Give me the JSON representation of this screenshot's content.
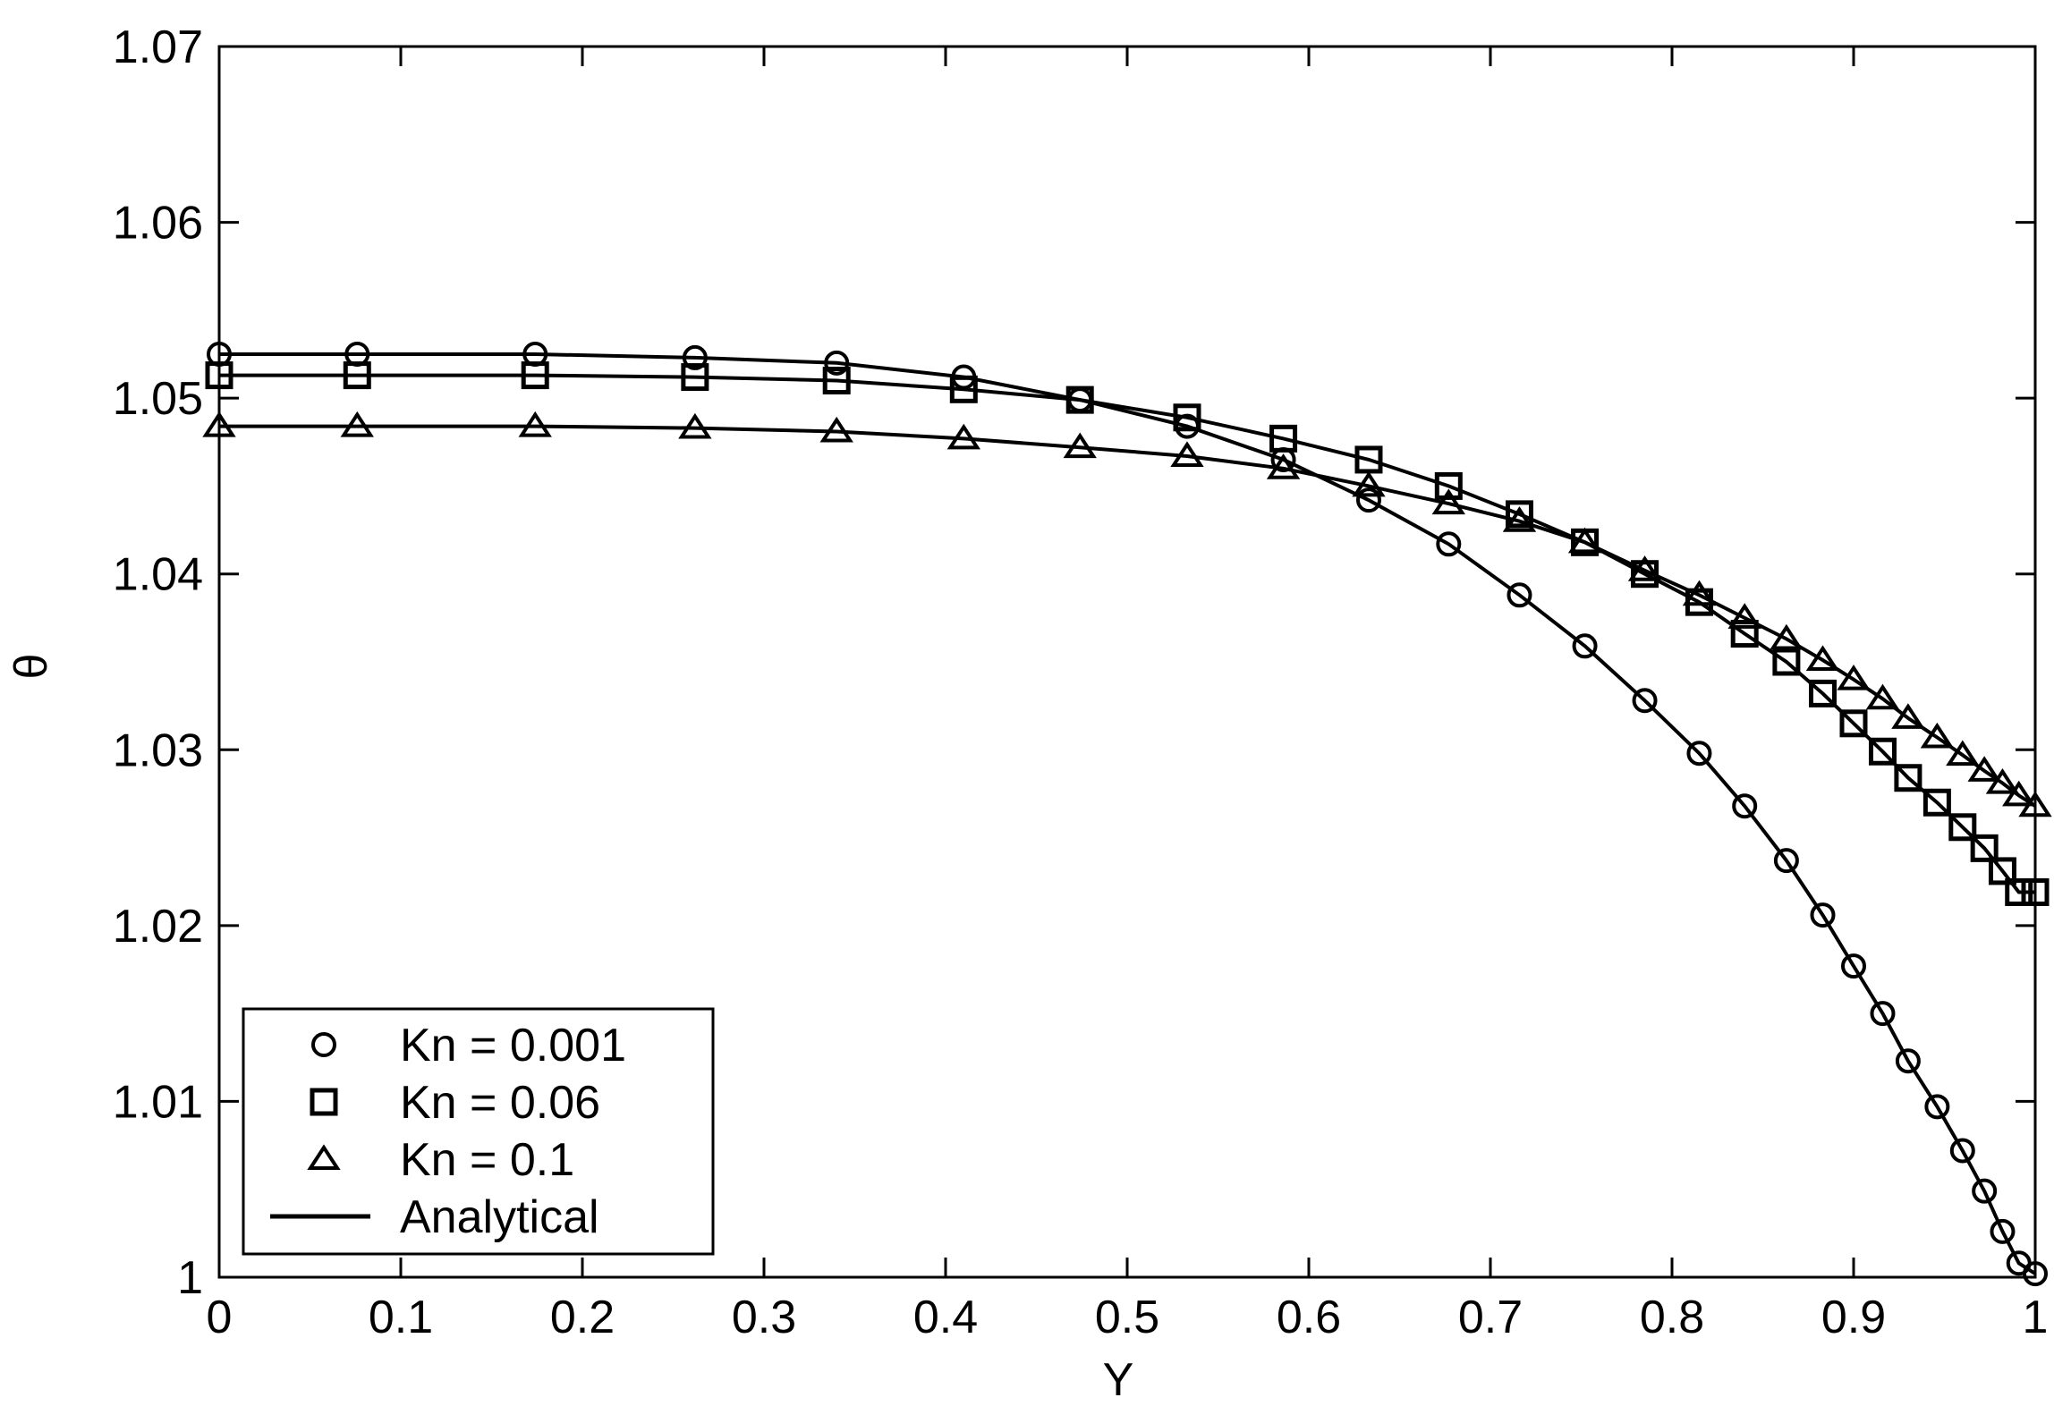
{
  "chart_data": {
    "type": "line",
    "title": "",
    "xlabel": "Y",
    "ylabel": "θ",
    "xlim": [
      0,
      1
    ],
    "ylim": [
      1.0,
      1.07
    ],
    "grid": false,
    "legend_position": "bottom-left",
    "xticks": [
      "0",
      "0.1",
      "0.2",
      "0.3",
      "0.4",
      "0.5",
      "0.6",
      "0.7",
      "0.8",
      "0.9",
      "1"
    ],
    "yticks": [
      "1",
      "1.01",
      "1.02",
      "1.03",
      "1.04",
      "1.05",
      "1.06",
      "1.07"
    ],
    "legend": [
      {
        "label": "Kn = 0.001",
        "marker": "circle"
      },
      {
        "label": "Kn = 0.06",
        "marker": "square"
      },
      {
        "label": "Kn = 0.1",
        "marker": "triangle"
      },
      {
        "label": "Analytical",
        "marker": "line"
      }
    ],
    "series": [
      {
        "name": "Kn = 0.001",
        "marker": "circle",
        "x": [
          0,
          0.076,
          0.174,
          0.262,
          0.34,
          0.41,
          0.474,
          0.533,
          0.586,
          0.633,
          0.677,
          0.716,
          0.752,
          0.785,
          0.815,
          0.84,
          0.863,
          0.883,
          0.9,
          0.916,
          0.93,
          0.946,
          0.96,
          0.972,
          0.982,
          0.991,
          1.0
        ],
        "y": [
          1.0525,
          1.0525,
          1.0525,
          1.0523,
          1.052,
          1.0512,
          1.0499,
          1.0484,
          1.0465,
          1.0442,
          1.0417,
          1.0388,
          1.0359,
          1.0328,
          1.0298,
          1.0268,
          1.0237,
          1.0206,
          1.0177,
          1.015,
          1.0123,
          1.0097,
          1.0072,
          1.0049,
          1.0026,
          1.0008,
          1.0002
        ]
      },
      {
        "name": "Kn = 0.06",
        "marker": "square",
        "x": [
          0,
          0.076,
          0.174,
          0.262,
          0.34,
          0.41,
          0.474,
          0.533,
          0.586,
          0.633,
          0.677,
          0.716,
          0.752,
          0.785,
          0.815,
          0.84,
          0.863,
          0.883,
          0.9,
          0.916,
          0.93,
          0.946,
          0.96,
          0.972,
          0.982,
          0.991,
          1.0
        ],
        "y": [
          1.0513,
          1.0513,
          1.0513,
          1.0512,
          1.051,
          1.0505,
          1.0499,
          1.0489,
          1.0477,
          1.0465,
          1.045,
          1.0434,
          1.0418,
          1.04,
          1.0384,
          1.0366,
          1.035,
          1.0332,
          1.0315,
          1.0299,
          1.0284,
          1.027,
          1.0256,
          1.0244,
          1.0231,
          1.0219,
          1.0219
        ]
      },
      {
        "name": "Kn = 0.1",
        "marker": "triangle",
        "x": [
          0,
          0.076,
          0.174,
          0.262,
          0.34,
          0.41,
          0.474,
          0.533,
          0.586,
          0.633,
          0.677,
          0.716,
          0.752,
          0.785,
          0.815,
          0.84,
          0.863,
          0.883,
          0.9,
          0.916,
          0.93,
          0.946,
          0.96,
          0.972,
          0.982,
          0.991,
          1.0
        ],
        "y": [
          1.0484,
          1.0484,
          1.0484,
          1.0483,
          1.0481,
          1.0477,
          1.0472,
          1.0467,
          1.046,
          1.045,
          1.044,
          1.043,
          1.0418,
          1.0402,
          1.0388,
          1.0375,
          1.0363,
          1.0351,
          1.034,
          1.0329,
          1.0318,
          1.0307,
          1.0297,
          1.0288,
          1.0281,
          1.0274,
          1.0268
        ]
      }
    ]
  }
}
